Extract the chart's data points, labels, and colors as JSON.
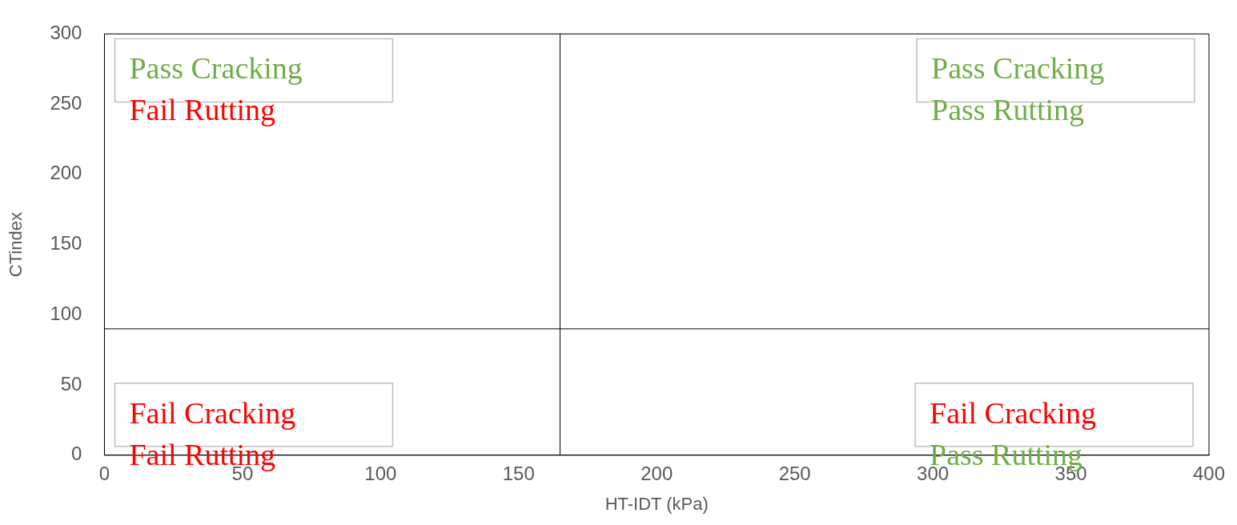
{
  "chart_data": {
    "type": "scatter",
    "xlabel": "HT-IDT (kPa)",
    "ylabel": "CTindex",
    "xlim": [
      0,
      400
    ],
    "xticks": [
      0,
      50,
      100,
      150,
      200,
      250,
      300,
      350,
      400
    ],
    "ylim": [
      0,
      300
    ],
    "yticks": [
      0,
      50,
      100,
      150,
      200,
      250,
      300
    ],
    "grid": false,
    "ref_lines": [
      {
        "axis": "x",
        "value": 165,
        "color": "#000000"
      },
      {
        "axis": "y",
        "value": 90,
        "color": "#000000"
      }
    ],
    "annotations": [
      "Pass Cracking",
      "Fail Rutting",
      "Pass Cracking",
      "Pass Rutting",
      "Fail Cracking",
      "Fail Rutting",
      "Fail Cracking",
      "Pass Rutting"
    ]
  }
}
